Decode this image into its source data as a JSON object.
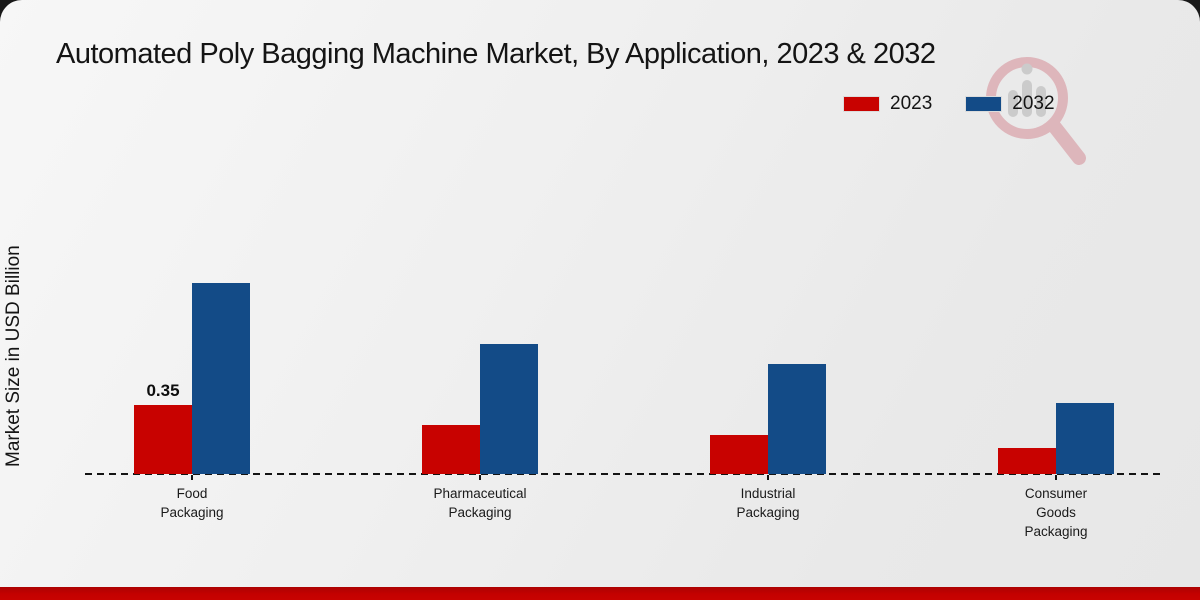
{
  "page": {
    "background_dark": "#191919",
    "footer_color": "#c40100"
  },
  "chart_data": {
    "type": "bar",
    "title": "Automated Poly Bagging Machine Market, By Application, 2023 & 2032",
    "xlabel": "",
    "ylabel": "Market Size in USD Billion",
    "categories": [
      [
        "Food",
        "Packaging"
      ],
      [
        "Pharmaceutical",
        "Packaging"
      ],
      [
        "Industrial",
        "Packaging"
      ],
      [
        "Consumer",
        "Goods",
        "Packaging"
      ]
    ],
    "series": [
      {
        "name": "2023",
        "color": "#c80200",
        "values": [
          0.35,
          0.25,
          0.2,
          0.13
        ],
        "value_labels": [
          "0.35",
          "",
          "",
          ""
        ]
      },
      {
        "name": "2032",
        "color": "#134b87",
        "values": [
          0.97,
          0.66,
          0.56,
          0.36
        ],
        "value_labels": [
          "",
          "",
          "",
          ""
        ]
      }
    ],
    "ylim": [
      0,
      1.1
    ],
    "grid": false,
    "legend_position": "top-right",
    "axis_style": "dashed-baseline",
    "y_ticks_visible": false
  },
  "watermark": {
    "name": "magnifier-bar-chart-logo",
    "ring_color": "#d58d96",
    "bars_color": "#b3b3b3"
  }
}
